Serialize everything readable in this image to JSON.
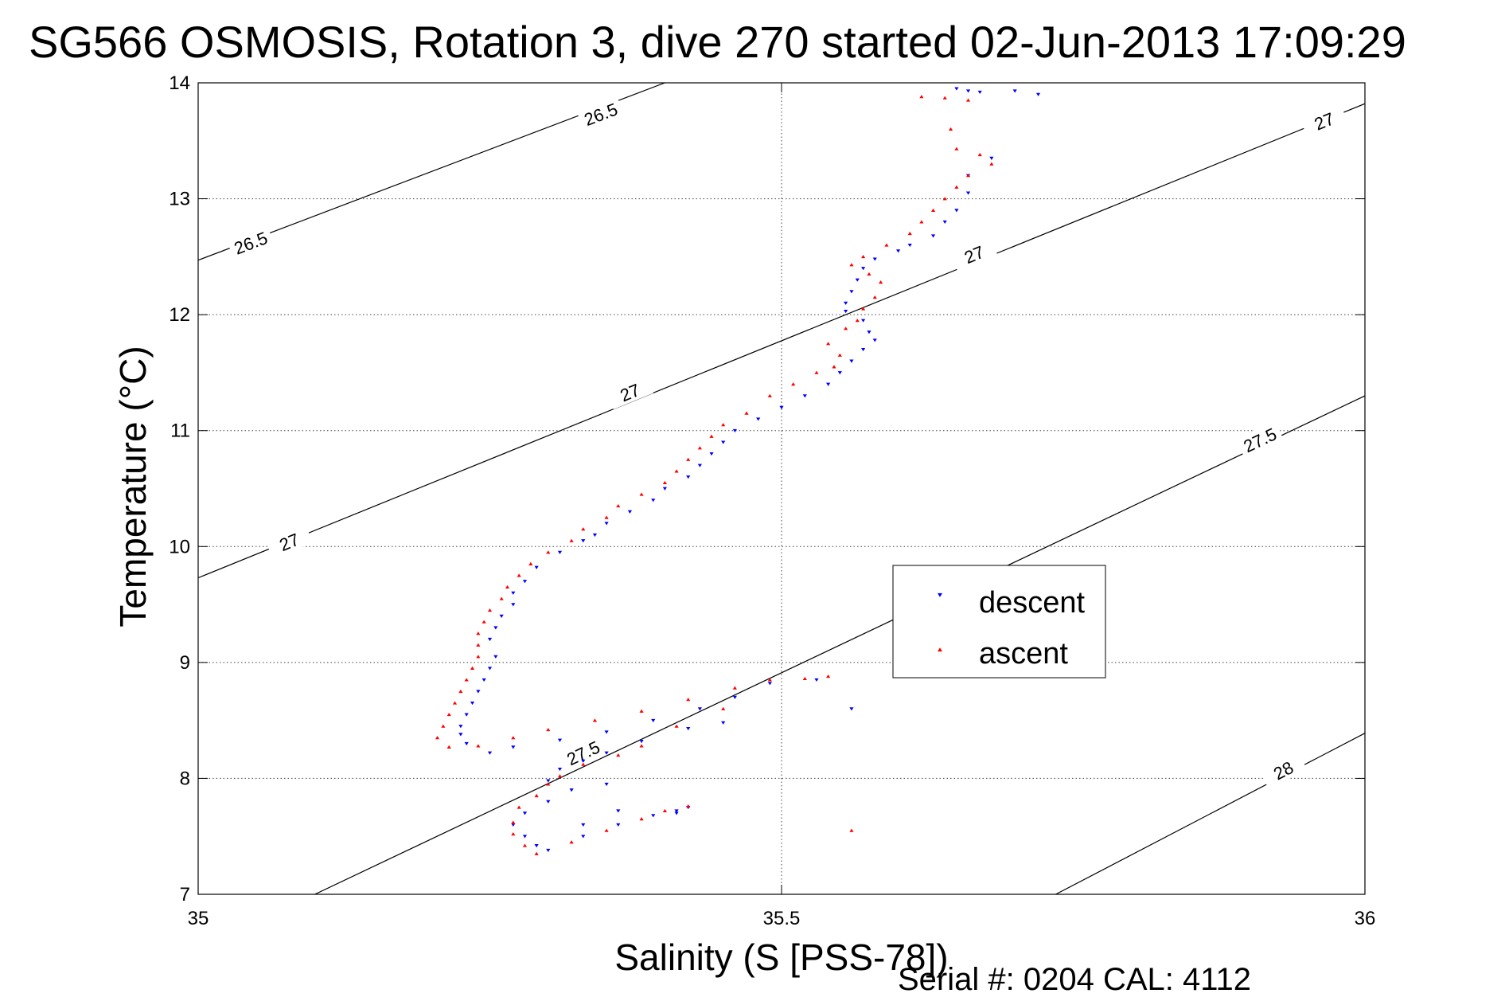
{
  "chart_data": {
    "type": "scatter",
    "title": "SG566 OSMOSIS, Rotation 3, dive 270 started 02-Jun-2013 17:09:29",
    "xlabel": "Salinity (S [PSS-78])",
    "ylabel": "Temperature (°C)",
    "xlim": [
      35,
      36
    ],
    "ylim": [
      7,
      14
    ],
    "xticks": [
      "35",
      "35.5",
      "36"
    ],
    "yticks": [
      "7",
      "8",
      "9",
      "10",
      "11",
      "12",
      "13",
      "14"
    ],
    "grid": true,
    "legend_position": "center-right",
    "density_contours": [
      {
        "value": 26.5,
        "label": "26.5",
        "points": [
          [
            35.0,
            12.47
          ],
          [
            35.4,
            14.0
          ]
        ],
        "labels": [
          [
            35.045,
            12.62
          ],
          [
            35.345,
            13.73
          ]
        ]
      },
      {
        "value": 27.0,
        "label": "27",
        "points": [
          [
            35.0,
            9.73
          ],
          [
            36.0,
            13.82
          ]
        ],
        "labels": [
          [
            35.078,
            10.04
          ],
          [
            35.37,
            11.33
          ],
          [
            35.665,
            12.52
          ],
          [
            35.965,
            13.67
          ]
        ]
      },
      {
        "value": 27.5,
        "label": "27.5",
        "points": [
          [
            35.1,
            7.0
          ],
          [
            36.0,
            11.3
          ]
        ],
        "labels": [
          [
            35.33,
            8.22
          ],
          [
            35.91,
            10.92
          ]
        ]
      },
      {
        "value": 28.0,
        "label": "28",
        "points": [
          [
            35.735,
            7.0
          ],
          [
            36.0,
            8.39
          ]
        ],
        "labels": [
          [
            35.93,
            8.07
          ]
        ]
      }
    ],
    "series": [
      {
        "name": "descent",
        "color": "#0000ff",
        "marker": "triangle-down",
        "points": [
          [
            35.65,
            13.95
          ],
          [
            35.66,
            13.93
          ],
          [
            35.67,
            13.92
          ],
          [
            35.7,
            13.93
          ],
          [
            35.72,
            13.9
          ],
          [
            35.68,
            13.35
          ],
          [
            35.66,
            13.2
          ],
          [
            35.66,
            13.05
          ],
          [
            35.65,
            12.9
          ],
          [
            35.64,
            12.8
          ],
          [
            35.63,
            12.68
          ],
          [
            35.61,
            12.6
          ],
          [
            35.6,
            12.55
          ],
          [
            35.58,
            12.48
          ],
          [
            35.57,
            12.4
          ],
          [
            35.565,
            12.3
          ],
          [
            35.56,
            12.2
          ],
          [
            35.555,
            12.1
          ],
          [
            35.555,
            12.03
          ],
          [
            35.57,
            11.95
          ],
          [
            35.575,
            11.85
          ],
          [
            35.58,
            11.78
          ],
          [
            35.57,
            11.7
          ],
          [
            35.56,
            11.6
          ],
          [
            35.55,
            11.5
          ],
          [
            35.54,
            11.4
          ],
          [
            35.52,
            11.3
          ],
          [
            35.5,
            11.2
          ],
          [
            35.48,
            11.1
          ],
          [
            35.46,
            11.0
          ],
          [
            35.45,
            10.9
          ],
          [
            35.44,
            10.8
          ],
          [
            35.43,
            10.7
          ],
          [
            35.42,
            10.6
          ],
          [
            35.4,
            10.5
          ],
          [
            35.39,
            10.4
          ],
          [
            35.37,
            10.3
          ],
          [
            35.35,
            10.2
          ],
          [
            35.34,
            10.1
          ],
          [
            35.33,
            10.05
          ],
          [
            35.31,
            9.95
          ],
          [
            35.29,
            9.82
          ],
          [
            35.28,
            9.7
          ],
          [
            35.27,
            9.6
          ],
          [
            35.27,
            9.5
          ],
          [
            35.26,
            9.4
          ],
          [
            35.255,
            9.3
          ],
          [
            35.25,
            9.2
          ],
          [
            35.255,
            9.05
          ],
          [
            35.25,
            8.95
          ],
          [
            35.245,
            8.85
          ],
          [
            35.24,
            8.75
          ],
          [
            35.235,
            8.65
          ],
          [
            35.23,
            8.55
          ],
          [
            35.225,
            8.45
          ],
          [
            35.225,
            8.38
          ],
          [
            35.23,
            8.3
          ],
          [
            35.25,
            8.22
          ],
          [
            35.27,
            8.27
          ],
          [
            35.31,
            8.33
          ],
          [
            35.35,
            8.4
          ],
          [
            35.39,
            8.5
          ],
          [
            35.43,
            8.6
          ],
          [
            35.46,
            8.7
          ],
          [
            35.49,
            8.82
          ],
          [
            35.53,
            8.85
          ],
          [
            35.56,
            8.6
          ],
          [
            35.45,
            8.48
          ],
          [
            35.42,
            8.43
          ],
          [
            35.38,
            8.32
          ],
          [
            35.35,
            8.22
          ],
          [
            35.33,
            8.15
          ],
          [
            35.31,
            8.08
          ],
          [
            35.3,
            7.98
          ],
          [
            35.32,
            7.9
          ],
          [
            35.3,
            7.8
          ],
          [
            35.28,
            7.7
          ],
          [
            35.27,
            7.6
          ],
          [
            35.28,
            7.5
          ],
          [
            35.29,
            7.42
          ],
          [
            35.3,
            7.38
          ],
          [
            35.33,
            7.5
          ],
          [
            35.36,
            7.6
          ],
          [
            35.39,
            7.68
          ],
          [
            35.41,
            7.72
          ],
          [
            35.42,
            7.75
          ],
          [
            35.41,
            7.7
          ],
          [
            35.36,
            7.72
          ],
          [
            35.33,
            7.6
          ],
          [
            35.35,
            7.95
          ]
        ]
      },
      {
        "name": "ascent",
        "color": "#ff0000",
        "marker": "triangle-up",
        "points": [
          [
            35.62,
            13.88
          ],
          [
            35.64,
            13.87
          ],
          [
            35.66,
            13.85
          ],
          [
            35.645,
            13.6
          ],
          [
            35.65,
            13.43
          ],
          [
            35.67,
            13.38
          ],
          [
            35.68,
            13.3
          ],
          [
            35.66,
            13.2
          ],
          [
            35.65,
            13.1
          ],
          [
            35.64,
            13.0
          ],
          [
            35.63,
            12.9
          ],
          [
            35.62,
            12.8
          ],
          [
            35.61,
            12.7
          ],
          [
            35.59,
            12.6
          ],
          [
            35.57,
            12.5
          ],
          [
            35.56,
            12.43
          ],
          [
            35.575,
            12.35
          ],
          [
            35.585,
            12.28
          ],
          [
            35.58,
            12.15
          ],
          [
            35.57,
            12.05
          ],
          [
            35.565,
            11.95
          ],
          [
            35.555,
            11.88
          ],
          [
            35.54,
            11.75
          ],
          [
            35.55,
            11.65
          ],
          [
            35.545,
            11.55
          ],
          [
            35.53,
            11.5
          ],
          [
            35.51,
            11.4
          ],
          [
            35.49,
            11.3
          ],
          [
            35.47,
            11.15
          ],
          [
            35.45,
            11.05
          ],
          [
            35.44,
            10.95
          ],
          [
            35.43,
            10.85
          ],
          [
            35.42,
            10.75
          ],
          [
            35.41,
            10.65
          ],
          [
            35.4,
            10.55
          ],
          [
            35.38,
            10.45
          ],
          [
            35.36,
            10.35
          ],
          [
            35.35,
            10.25
          ],
          [
            35.33,
            10.15
          ],
          [
            35.32,
            10.05
          ],
          [
            35.3,
            9.95
          ],
          [
            35.285,
            9.85
          ],
          [
            35.275,
            9.75
          ],
          [
            35.265,
            9.65
          ],
          [
            35.26,
            9.55
          ],
          [
            35.25,
            9.45
          ],
          [
            35.245,
            9.35
          ],
          [
            35.24,
            9.25
          ],
          [
            35.24,
            9.15
          ],
          [
            35.24,
            9.05
          ],
          [
            35.235,
            8.95
          ],
          [
            35.23,
            8.85
          ],
          [
            35.225,
            8.75
          ],
          [
            35.22,
            8.65
          ],
          [
            35.215,
            8.55
          ],
          [
            35.21,
            8.45
          ],
          [
            35.205,
            8.35
          ],
          [
            35.215,
            8.27
          ],
          [
            35.24,
            8.28
          ],
          [
            35.27,
            8.35
          ],
          [
            35.3,
            8.42
          ],
          [
            35.34,
            8.5
          ],
          [
            35.38,
            8.58
          ],
          [
            35.42,
            8.68
          ],
          [
            35.46,
            8.78
          ],
          [
            35.49,
            8.85
          ],
          [
            35.52,
            8.86
          ],
          [
            35.54,
            8.88
          ],
          [
            35.45,
            8.6
          ],
          [
            35.41,
            8.45
          ],
          [
            35.38,
            8.28
          ],
          [
            35.36,
            8.2
          ],
          [
            35.33,
            8.12
          ],
          [
            35.31,
            8.02
          ],
          [
            35.3,
            7.95
          ],
          [
            35.29,
            7.85
          ],
          [
            35.275,
            7.75
          ],
          [
            35.27,
            7.62
          ],
          [
            35.27,
            7.52
          ],
          [
            35.28,
            7.42
          ],
          [
            35.29,
            7.35
          ],
          [
            35.32,
            7.45
          ],
          [
            35.35,
            7.55
          ],
          [
            35.38,
            7.65
          ],
          [
            35.4,
            7.72
          ],
          [
            35.42,
            7.76
          ],
          [
            35.56,
            7.55
          ]
        ]
      }
    ]
  },
  "footer": {
    "serial_text": "Serial #: 0204  CAL: 4112"
  }
}
